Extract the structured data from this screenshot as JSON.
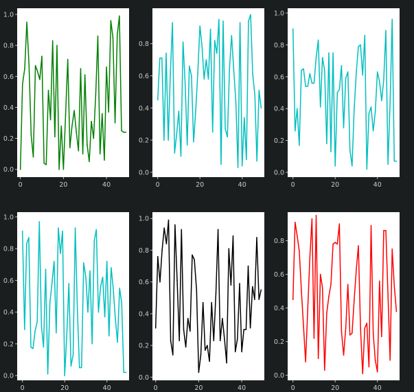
{
  "figure": {
    "background": "#1b1e1f"
  },
  "chart_data": [
    {
      "type": "line",
      "title": "",
      "xlabel": "",
      "ylabel": "",
      "xlim": [
        -1.5,
        50.5
      ],
      "ylim": [
        -0.05,
        1.04
      ],
      "xticks": [
        0,
        20,
        40
      ],
      "xtick_labels": [
        "0",
        "20",
        "40"
      ],
      "yticks": [
        0.0,
        0.2,
        0.4,
        0.6,
        0.8,
        1.0
      ],
      "ytick_labels": [
        "0.0",
        "0.2",
        "0.4",
        "0.6",
        "0.8",
        "1.0"
      ],
      "series": [
        {
          "color": "#008000",
          "x": [
            0,
            1,
            2,
            3,
            4,
            5,
            6,
            7,
            8,
            9,
            10,
            11,
            12,
            13,
            14,
            15,
            16,
            17,
            18,
            19,
            20,
            21,
            22,
            23,
            24,
            25,
            26,
            27,
            28,
            29,
            30,
            31,
            32,
            33,
            34,
            35,
            36,
            37,
            38,
            39,
            40,
            41,
            42,
            43,
            44,
            45,
            46,
            47,
            48,
            49
          ],
          "values": [
            0.0,
            0.55,
            0.65,
            0.95,
            0.68,
            0.22,
            0.08,
            0.67,
            0.63,
            0.58,
            0.73,
            0.04,
            0.03,
            0.51,
            0.32,
            0.83,
            0.21,
            0.8,
            0.0,
            0.28,
            0.0,
            0.35,
            0.71,
            0.14,
            0.28,
            0.38,
            0.24,
            0.12,
            0.65,
            0.1,
            0.61,
            0.16,
            0.05,
            0.31,
            0.2,
            0.48,
            0.86,
            0.1,
            0.36,
            0.06,
            0.66,
            0.37,
            0.96,
            0.85,
            0.3,
            0.87,
            0.99,
            0.25,
            0.24,
            0.24
          ]
        }
      ]
    },
    {
      "type": "line",
      "title": "",
      "xlabel": "",
      "ylabel": "",
      "xlim": [
        -2.5,
        50.5
      ],
      "ylim": [
        -0.03,
        1.02
      ],
      "xticks": [
        0,
        20,
        40
      ],
      "xtick_labels": [
        "0",
        "20",
        "40"
      ],
      "yticks": [
        0.0,
        0.2,
        0.4,
        0.6,
        0.8
      ],
      "ytick_labels": [
        "0.0",
        "0.2",
        "0.4",
        "0.6",
        "0.8"
      ],
      "series": [
        {
          "color": "#00bfbf",
          "x": [
            0,
            1,
            2,
            3,
            4,
            5,
            6,
            7,
            8,
            9,
            10,
            11,
            12,
            13,
            14,
            15,
            16,
            17,
            18,
            19,
            20,
            21,
            22,
            23,
            24,
            25,
            26,
            27,
            28,
            29,
            30,
            31,
            32,
            33,
            34,
            35,
            36,
            37,
            38,
            39,
            40,
            41,
            42,
            43,
            44,
            45,
            46,
            47,
            48,
            49
          ],
          "values": [
            0.45,
            0.71,
            0.71,
            0.2,
            0.74,
            0.2,
            0.61,
            0.93,
            0.12,
            0.24,
            0.38,
            0.1,
            0.81,
            0.55,
            0.17,
            0.66,
            0.6,
            0.19,
            0.38,
            0.62,
            0.91,
            0.78,
            0.58,
            0.7,
            0.58,
            0.89,
            0.25,
            0.82,
            0.74,
            0.95,
            0.05,
            0.94,
            0.27,
            0.22,
            0.65,
            0.85,
            0.64,
            0.44,
            0.03,
            0.93,
            0.04,
            0.34,
            0.08,
            0.94,
            0.98,
            0.61,
            0.48,
            0.07,
            0.51,
            0.4
          ]
        }
      ]
    },
    {
      "type": "line",
      "title": "",
      "xlabel": "",
      "ylabel": "",
      "xlim": [
        -2.5,
        50.5
      ],
      "ylim": [
        -0.03,
        1.03
      ],
      "xticks": [
        0,
        20,
        40
      ],
      "xtick_labels": [
        "0",
        "20",
        "40"
      ],
      "yticks": [
        0.0,
        0.2,
        0.4,
        0.6,
        0.8,
        1.0
      ],
      "ytick_labels": [
        "0.0",
        "0.2",
        "0.4",
        "0.6",
        "0.8",
        "1.0"
      ],
      "series": [
        {
          "color": "#00bfbf",
          "x": [
            0,
            1,
            2,
            3,
            4,
            5,
            6,
            7,
            8,
            9,
            10,
            11,
            12,
            13,
            14,
            15,
            16,
            17,
            18,
            19,
            20,
            21,
            22,
            23,
            24,
            25,
            26,
            27,
            28,
            29,
            30,
            31,
            32,
            33,
            34,
            35,
            36,
            37,
            38,
            39,
            40,
            41,
            42,
            43,
            44,
            45,
            46,
            47,
            48,
            49
          ],
          "values": [
            0.9,
            0.26,
            0.4,
            0.17,
            0.64,
            0.65,
            0.54,
            0.54,
            0.62,
            0.56,
            0.56,
            0.72,
            0.83,
            0.41,
            0.72,
            0.64,
            0.18,
            0.75,
            0.13,
            0.75,
            0.04,
            0.5,
            0.52,
            0.67,
            0.28,
            0.59,
            0.63,
            0.14,
            0.04,
            0.4,
            0.63,
            0.79,
            0.8,
            0.61,
            0.86,
            0.02,
            0.37,
            0.41,
            0.26,
            0.38,
            0.63,
            0.57,
            0.45,
            0.58,
            0.89,
            0.05,
            0.44,
            0.96,
            0.07,
            0.07
          ]
        }
      ]
    },
    {
      "type": "line",
      "title": "",
      "xlabel": "",
      "ylabel": "",
      "xlim": [
        -2.5,
        50.5
      ],
      "ylim": [
        -0.03,
        1.03
      ],
      "xticks": [
        0,
        20,
        40
      ],
      "xtick_labels": [
        "0",
        "20",
        "40"
      ],
      "yticks": [
        0.0,
        0.2,
        0.4,
        0.6,
        0.8,
        1.0
      ],
      "ytick_labels": [
        "0.0",
        "0.2",
        "0.4",
        "0.6",
        "0.8",
        "1.0"
      ],
      "series": [
        {
          "color": "#00bfbf",
          "x": [
            0,
            1,
            2,
            3,
            4,
            5,
            6,
            7,
            8,
            9,
            10,
            11,
            12,
            13,
            14,
            15,
            16,
            17,
            18,
            19,
            20,
            21,
            22,
            23,
            24,
            25,
            26,
            27,
            28,
            29,
            30,
            31,
            32,
            33,
            34,
            35,
            36,
            37,
            38,
            39,
            40,
            41,
            42,
            43,
            44,
            45,
            46,
            47,
            48,
            49
          ],
          "values": [
            0.91,
            0.29,
            0.83,
            0.87,
            0.18,
            0.17,
            0.28,
            0.34,
            0.97,
            0.31,
            0.18,
            0.67,
            0.01,
            0.46,
            0.58,
            0.72,
            0.27,
            0.93,
            0.77,
            0.91,
            0.0,
            0.26,
            0.58,
            0.06,
            0.13,
            0.93,
            0.42,
            0.05,
            0.05,
            0.71,
            0.62,
            0.4,
            0.66,
            0.2,
            0.85,
            0.92,
            0.4,
            0.56,
            0.62,
            0.37,
            0.72,
            0.25,
            0.68,
            0.55,
            0.36,
            0.21,
            0.55,
            0.46,
            0.02,
            0.02
          ]
        }
      ]
    },
    {
      "type": "line",
      "title": "",
      "xlabel": "",
      "ylabel": "",
      "xlim": [
        -1.5,
        50.5
      ],
      "ylim": [
        -0.02,
        1.04
      ],
      "xticks": [
        0,
        20,
        40
      ],
      "xtick_labels": [
        "0",
        "20",
        "40"
      ],
      "yticks": [
        0.0,
        0.2,
        0.4,
        0.6,
        0.8,
        1.0
      ],
      "ytick_labels": [
        "0.0",
        "0.2",
        "0.4",
        "0.6",
        "0.8",
        "1.0"
      ],
      "series": [
        {
          "color": "#000000",
          "x": [
            0,
            1,
            2,
            3,
            4,
            5,
            6,
            7,
            8,
            9,
            10,
            11,
            12,
            13,
            14,
            15,
            16,
            17,
            18,
            19,
            20,
            21,
            22,
            23,
            24,
            25,
            26,
            27,
            28,
            29,
            30,
            31,
            32,
            33,
            34,
            35,
            36,
            37,
            38,
            39,
            40,
            41,
            42,
            43,
            44,
            45,
            46,
            47,
            48,
            49
          ],
          "values": [
            0.31,
            0.76,
            0.6,
            0.8,
            0.94,
            0.84,
            0.99,
            0.23,
            0.14,
            0.96,
            0.61,
            0.23,
            0.93,
            0.3,
            0.19,
            0.37,
            0.29,
            0.77,
            0.74,
            0.55,
            0.03,
            0.14,
            0.47,
            0.17,
            0.2,
            0.1,
            0.47,
            0.23,
            0.53,
            0.93,
            0.23,
            0.37,
            0.24,
            0.09,
            0.81,
            0.58,
            0.89,
            0.16,
            0.24,
            0.59,
            0.16,
            0.3,
            0.3,
            0.7,
            0.31,
            0.57,
            0.49,
            0.88,
            0.49,
            0.55
          ]
        }
      ]
    },
    {
      "type": "line",
      "title": "",
      "xlabel": "",
      "ylabel": "",
      "xlim": [
        -2.5,
        50.5
      ],
      "ylim": [
        -0.03,
        0.97
      ],
      "xticks": [
        0,
        20,
        40
      ],
      "xtick_labels": [
        "0",
        "20",
        "40"
      ],
      "yticks": [
        0.0,
        0.2,
        0.4,
        0.6,
        0.8
      ],
      "ytick_labels": [
        "0.0",
        "0.2",
        "0.4",
        "0.6",
        "0.8"
      ],
      "series": [
        {
          "color": "#ff0000",
          "x": [
            0,
            1,
            2,
            3,
            4,
            5,
            6,
            7,
            8,
            9,
            10,
            11,
            12,
            13,
            14,
            15,
            16,
            17,
            18,
            19,
            20,
            21,
            22,
            23,
            24,
            25,
            26,
            27,
            28,
            29,
            30,
            31,
            32,
            33,
            34,
            35,
            36,
            37,
            38,
            39,
            40,
            41,
            42,
            43,
            44,
            45,
            46,
            47,
            48,
            49
          ],
          "values": [
            0.45,
            0.91,
            0.83,
            0.74,
            0.5,
            0.29,
            0.08,
            0.39,
            0.7,
            0.93,
            0.22,
            0.95,
            0.1,
            0.6,
            0.52,
            0.03,
            0.37,
            0.47,
            0.54,
            0.78,
            0.79,
            0.78,
            0.9,
            0.26,
            0.12,
            0.28,
            0.54,
            0.24,
            0.25,
            0.45,
            0.63,
            0.77,
            0.28,
            0.01,
            0.28,
            0.31,
            0.05,
            0.89,
            0.25,
            0.09,
            0.02,
            0.56,
            0.23,
            0.86,
            0.86,
            0.48,
            0.09,
            0.75,
            0.53,
            0.38
          ]
        }
      ]
    }
  ]
}
